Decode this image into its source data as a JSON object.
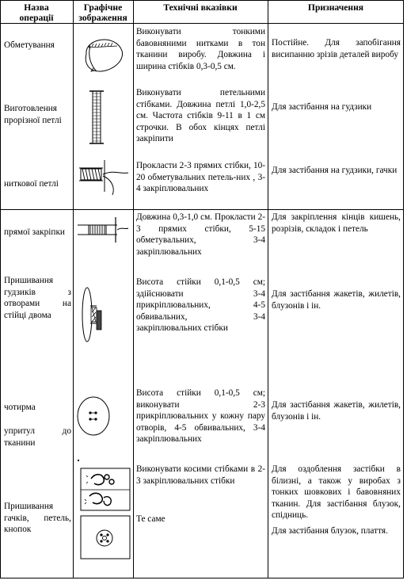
{
  "headers": {
    "name": "Назва операції",
    "graphic": "Графічне зображення",
    "technical": "Технічні вказівки",
    "purpose": "Призначення"
  },
  "rows": {
    "overcast": {
      "name": "Обметування",
      "tech": "Виконувати тонкими бавовняними нитками в тон тканини виробу. Довжина і ширина стібків 0,3-0,5 см.",
      "purpose": "Постійне. Для запобігання висипанню зрізів деталей виробу"
    },
    "buttonhole": {
      "name": "Виготовлення прорізної петлі",
      "tech": "Виконувати петельними стібками. Довжина петлі 1,0-2,5 см. Частота стібків 9-11 в 1 см строчки. В обох кінцях петлі закріпити",
      "purpose": "Для застібання на гудзики"
    },
    "thread_loop": {
      "name": "ниткової петлі",
      "tech": "Прокласти 2-3 прямих стібки, 10-20 обметувальних петель-них , 3-4 закріплювальних",
      "purpose": "Для застібання на гудзики, гачки"
    },
    "bartack": {
      "name": "прямої закріпки",
      "tech": "Довжина 0,3-1,0 см. Прокласти 2-3 прямих стібки, 5-15 обметувальних, 3-4 закріплювальних",
      "purpose": "Для закріплення кінців кишень, розрізів, складок і петель"
    },
    "shank_button": {
      "name": "Пришивання гудзиків з отворами на стійці двома",
      "tech": "Висота стійки 0,1-0,5 см; здійснювати 3-4 прикріплювальних, 4-5 обвивальних, 3-4 закріплювальних стібки",
      "purpose": "Для застібання жакетів, жилетів, блузонів і ін."
    },
    "four_hole": {
      "name_a": "чотирма",
      "name_b": "упритул до тканини",
      "tech": "Висота стійки 0,1-0,5 см; виконувати 2-3 прикріплювальних у кожну пару отворів, 4-5 обвивальних, 3-4 закріплювальних",
      "purpose": "Для застібання жакетів, жилетів, блузонів і ін."
    },
    "hooks": {
      "name": "Пришивання гачків, петель, кнопок",
      "tech": "Виконувати косими стібками в 2-3 закріплювальних стібки",
      "tech_same": "Те саме",
      "purpose": "Для оздоблення застібки в білизні, а також у виробах з тонких шовкових і бавовняних тканин. Для застібання блузок, спідниць.",
      "purpose2": "Для застібання блузок, плаття."
    }
  }
}
